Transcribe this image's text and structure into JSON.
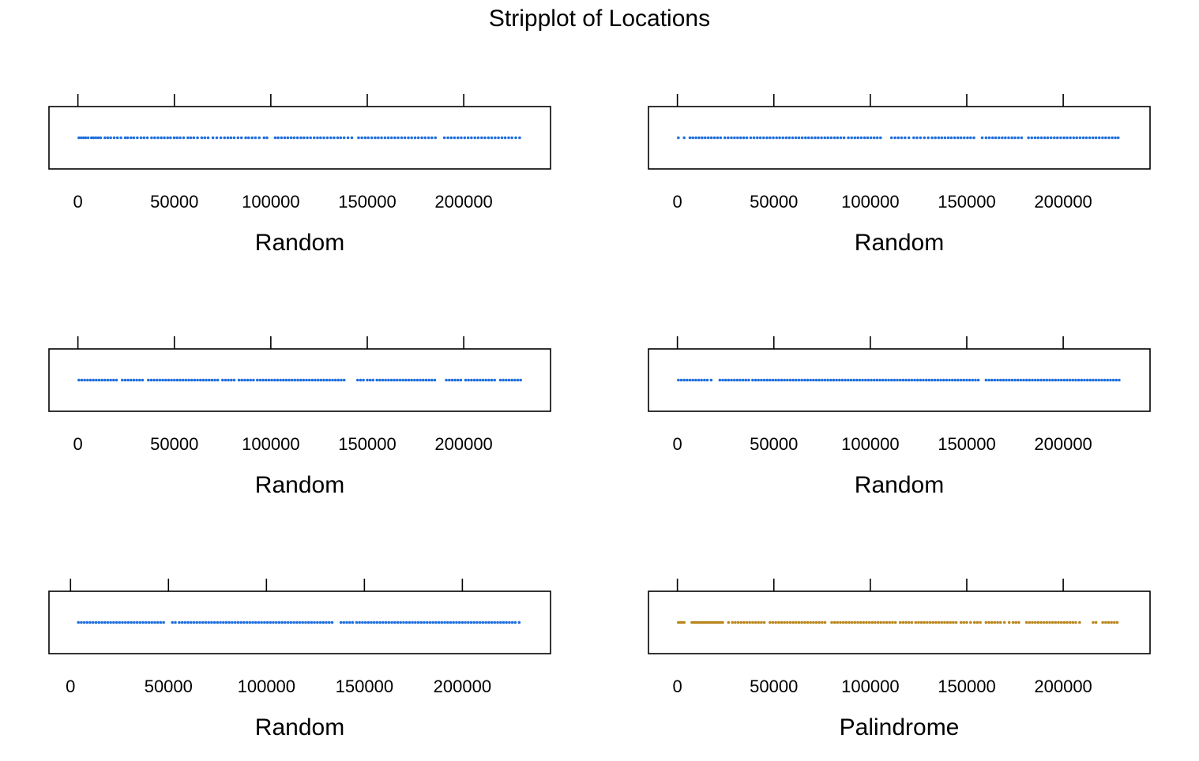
{
  "chart_data": {
    "type": "scatter",
    "title": "Stripplot of Locations",
    "colors": {
      "Random": "#1f6fde",
      "Palindrome": "#b8861b",
      "axis": "#000000"
    },
    "panels": [
      {
        "xlabel": "Random",
        "xlim": [
          -15000,
          245000
        ],
        "ticks": [
          0,
          50000,
          100000,
          150000,
          200000
        ],
        "tick_labels": [
          "0",
          "50000",
          "100000",
          "150000",
          "200000"
        ],
        "color": "#1f6fde",
        "values": [
          500,
          1700,
          2900,
          4000,
          5300,
          7000,
          8100,
          9300,
          10500,
          11800,
          14000,
          15500,
          17000,
          18800,
          20500,
          22300,
          24500,
          25800,
          27500,
          29000,
          30800,
          32700,
          34300,
          36000,
          38200,
          39800,
          41500,
          43200,
          44800,
          46500,
          48000,
          49900,
          51400,
          53000,
          54800,
          57000,
          58500,
          60100,
          62000,
          64200,
          65800,
          67500,
          70000,
          72000,
          74100,
          76000,
          77700,
          79300,
          81000,
          83000,
          84800,
          87000,
          88500,
          90300,
          92000,
          94000,
          96500,
          98000,
          102300,
          103800,
          105500,
          107200,
          108800,
          110500,
          112100,
          113800,
          115600,
          117200,
          118900,
          120600,
          122500,
          124200,
          125800,
          127500,
          129300,
          131100,
          132800,
          134600,
          136200,
          138000,
          140000,
          142000,
          145500,
          147200,
          148900,
          150500,
          152300,
          154100,
          155700,
          157400,
          159200,
          160900,
          162600,
          164300,
          166000,
          167800,
          169500,
          171300,
          173000,
          174800,
          176500,
          178300,
          180000,
          181800,
          183500,
          185300,
          190000,
          191800,
          193500,
          195200,
          197000,
          198700,
          200500,
          202300,
          204000,
          205800,
          207500,
          209300,
          211000,
          212800,
          214500,
          216300,
          218000,
          219800,
          221500,
          223300,
          225000,
          227000,
          229000
        ]
      },
      {
        "xlabel": "Random",
        "xlim": [
          -15000,
          245000
        ],
        "ticks": [
          0,
          50000,
          100000,
          150000,
          200000
        ],
        "tick_labels": [
          "0",
          "50000",
          "100000",
          "150000",
          "200000"
        ],
        "color": "#1f6fde",
        "values": [
          500,
          3500,
          6500,
          8000,
          9600,
          11200,
          12800,
          14400,
          16000,
          17600,
          19200,
          20800,
          22400,
          24600,
          26300,
          28000,
          29600,
          31200,
          32800,
          34400,
          36000,
          38000,
          39700,
          41400,
          43000,
          44700,
          46400,
          48000,
          49700,
          51400,
          53000,
          54700,
          56400,
          58000,
          59700,
          61400,
          63000,
          64700,
          66400,
          68000,
          69700,
          71400,
          73000,
          74700,
          76400,
          78000,
          79700,
          81400,
          83000,
          84700,
          86400,
          88600,
          90300,
          92000,
          93600,
          95300,
          97000,
          98600,
          100300,
          102000,
          103600,
          105300,
          111000,
          112800,
          114500,
          116200,
          118000,
          120000,
          122500,
          124200,
          126000,
          128000,
          130000,
          132000,
          133700,
          135400,
          137000,
          138700,
          140400,
          142000,
          143700,
          145400,
          147000,
          148700,
          150400,
          152000,
          153700,
          158000,
          160000,
          161700,
          163400,
          165000,
          166700,
          168400,
          170000,
          171700,
          173400,
          175000,
          176700,
          178400,
          182000,
          183700,
          185400,
          187000,
          188700,
          190400,
          192000,
          193700,
          195400,
          197000,
          198700,
          200400,
          202000,
          203700,
          205400,
          207000,
          208700,
          210400,
          212000,
          213700,
          215400,
          217000,
          218700,
          220400,
          222000,
          223700,
          225400,
          227000,
          228500
        ]
      },
      {
        "xlabel": "Random",
        "xlim": [
          -15000,
          245000
        ],
        "ticks": [
          0,
          50000,
          100000,
          150000,
          200000
        ],
        "tick_labels": [
          "0",
          "50000",
          "100000",
          "150000",
          "200000"
        ],
        "color": "#1f6fde",
        "values": [
          500,
          2000,
          3500,
          5000,
          6500,
          8000,
          9500,
          11000,
          12500,
          14000,
          15500,
          17000,
          18500,
          20000,
          23000,
          24500,
          26000,
          27500,
          29000,
          30500,
          32000,
          33500,
          36500,
          38000,
          39500,
          41000,
          42500,
          44000,
          45500,
          47000,
          48500,
          50000,
          51500,
          53000,
          54500,
          56000,
          57500,
          59000,
          60500,
          62000,
          63500,
          65000,
          66500,
          68000,
          69500,
          71000,
          72500,
          75000,
          76500,
          78000,
          79500,
          81000,
          83500,
          85000,
          86500,
          88000,
          89500,
          91000,
          93000,
          94500,
          96000,
          97500,
          99000,
          100500,
          102000,
          103500,
          105000,
          106500,
          108000,
          109500,
          111000,
          112500,
          114000,
          115500,
          117000,
          118500,
          120000,
          121500,
          123000,
          124500,
          126000,
          127500,
          129000,
          130500,
          132000,
          133500,
          135000,
          136500,
          138000,
          145000,
          146500,
          148000,
          150000,
          151500,
          153000,
          155000,
          156500,
          158000,
          159500,
          161000,
          162500,
          164000,
          165500,
          167000,
          168500,
          170000,
          171500,
          173000,
          174500,
          176000,
          177500,
          179000,
          180500,
          182000,
          183500,
          185000,
          191000,
          192500,
          194000,
          195500,
          197000,
          198500,
          201000,
          202500,
          204000,
          205500,
          207000,
          208500,
          210000,
          211500,
          213000,
          214500,
          216000,
          219000,
          220500,
          222000,
          223500,
          225000,
          226500,
          228000,
          229500
        ]
      },
      {
        "xlabel": "Random",
        "xlim": [
          -15000,
          245000
        ],
        "ticks": [
          0,
          50000,
          100000,
          150000,
          200000
        ],
        "tick_labels": [
          "0",
          "50000",
          "100000",
          "150000",
          "200000"
        ],
        "color": "#1f6fde",
        "values": [
          500,
          2000,
          3500,
          5000,
          6500,
          8000,
          9500,
          11000,
          12500,
          14000,
          15500,
          17500,
          22000,
          23500,
          25000,
          26500,
          28000,
          29500,
          31000,
          32500,
          34000,
          35500,
          37000,
          39000,
          40500,
          42000,
          43500,
          45000,
          46500,
          48000,
          49500,
          51000,
          52500,
          54000,
          55500,
          57000,
          58500,
          60000,
          61500,
          63000,
          64500,
          66000,
          67500,
          69000,
          70500,
          72000,
          73500,
          75000,
          76500,
          78000,
          79500,
          81000,
          82500,
          84000,
          85500,
          87000,
          88500,
          90000,
          91500,
          93000,
          94500,
          96000,
          97500,
          99000,
          100500,
          102000,
          103500,
          105000,
          106500,
          108000,
          109500,
          111000,
          112500,
          114000,
          115500,
          117000,
          118500,
          120000,
          121500,
          123000,
          124500,
          126000,
          127500,
          129000,
          130500,
          132000,
          133500,
          135000,
          136500,
          138000,
          139500,
          141000,
          142500,
          144000,
          145500,
          147000,
          148500,
          150000,
          151500,
          153000,
          154500,
          156000,
          160000,
          161500,
          163000,
          164500,
          166000,
          167500,
          169000,
          170500,
          172000,
          173500,
          175000,
          176500,
          178000,
          179500,
          181000,
          182500,
          184000,
          185500,
          187000,
          188500,
          190000,
          191500,
          193000,
          194500,
          196000,
          197500,
          199000,
          200500,
          202000,
          203500,
          205000,
          206500,
          208000,
          209500,
          211000,
          212500,
          214000,
          215500,
          217000,
          218500,
          220000,
          221500,
          223000,
          224500,
          226000,
          227500,
          229000
        ]
      },
      {
        "xlabel": "Random",
        "xlim": [
          -11000,
          245000
        ],
        "ticks": [
          0,
          50000,
          100000,
          150000,
          200000
        ],
        "tick_labels": [
          "0",
          "50000",
          "100000",
          "150000",
          "200000"
        ],
        "color": "#1f6fde",
        "values": [
          4000,
          5500,
          7000,
          8500,
          10000,
          11500,
          13000,
          14500,
          16000,
          17500,
          19000,
          20500,
          22000,
          23500,
          25000,
          26500,
          28000,
          29500,
          31000,
          32500,
          34000,
          35500,
          37000,
          38500,
          40000,
          41500,
          43000,
          44500,
          46000,
          47500,
          52000,
          53500,
          55500,
          57000,
          58500,
          60000,
          61500,
          63000,
          64500,
          66000,
          67500,
          69000,
          70500,
          72000,
          73500,
          75000,
          76500,
          78000,
          79500,
          81000,
          82500,
          84000,
          85500,
          87000,
          88500,
          90000,
          91500,
          93000,
          94500,
          96000,
          97500,
          99000,
          100500,
          102000,
          103500,
          105000,
          106500,
          108000,
          109500,
          111000,
          112500,
          114000,
          115500,
          117000,
          118500,
          120000,
          121500,
          123000,
          124500,
          126000,
          127500,
          129000,
          130500,
          132000,
          133500,
          138000,
          139500,
          141000,
          142500,
          144000,
          146000,
          147500,
          149000,
          150500,
          152000,
          153500,
          155000,
          156500,
          158000,
          159500,
          161000,
          162500,
          164000,
          165500,
          167000,
          168500,
          170000,
          171500,
          173000,
          174500,
          176000,
          177500,
          179000,
          180500,
          182000,
          183500,
          185000,
          186500,
          188000,
          189500,
          191000,
          192500,
          194000,
          195500,
          197000,
          198500,
          200000,
          201500,
          203000,
          204500,
          206000,
          207500,
          209000,
          210500,
          212000,
          213500,
          215000,
          216500,
          218000,
          219500,
          221000,
          222500,
          224000,
          225500,
          227000,
          229000
        ]
      },
      {
        "xlabel": "Palindrome",
        "xlim": [
          -15000,
          245000
        ],
        "ticks": [
          0,
          50000,
          100000,
          150000,
          200000
        ],
        "tick_labels": [
          "0",
          "50000",
          "100000",
          "150000",
          "200000"
        ],
        "color": "#b8861b",
        "values": [
          500,
          1500,
          2500,
          3500,
          7500,
          8500,
          9500,
          10500,
          11500,
          12500,
          13500,
          14500,
          15500,
          16500,
          17500,
          18500,
          19500,
          20500,
          21500,
          22500,
          23500,
          26500,
          28500,
          30000,
          31500,
          33000,
          34500,
          36000,
          37500,
          39000,
          40500,
          42000,
          43500,
          45000,
          48000,
          49500,
          51000,
          52500,
          54000,
          55500,
          57000,
          58500,
          60000,
          61500,
          63000,
          64500,
          66000,
          67500,
          69000,
          70500,
          72000,
          73500,
          75000,
          76500,
          80000,
          81500,
          83000,
          84500,
          86000,
          87500,
          89000,
          90500,
          92000,
          93500,
          95000,
          96500,
          98000,
          99500,
          101000,
          102500,
          104000,
          105500,
          107000,
          108500,
          110000,
          111500,
          113000,
          115500,
          117000,
          118500,
          120000,
          121500,
          123500,
          125000,
          126500,
          128000,
          129500,
          131000,
          132500,
          134000,
          135500,
          137000,
          138500,
          140000,
          141500,
          143000,
          144500,
          147000,
          148500,
          150000,
          152000,
          154000,
          155500,
          157000,
          160000,
          161500,
          163000,
          164500,
          166000,
          167500,
          169500,
          172000,
          174000,
          175500,
          177000,
          181000,
          182500,
          184000,
          185500,
          187000,
          188500,
          190000,
          191500,
          193000,
          194500,
          196000,
          197500,
          199000,
          200500,
          202000,
          203500,
          205000,
          206500,
          208500,
          215500,
          217000,
          220500,
          222000,
          223500,
          225000,
          226500,
          228000
        ]
      }
    ]
  }
}
